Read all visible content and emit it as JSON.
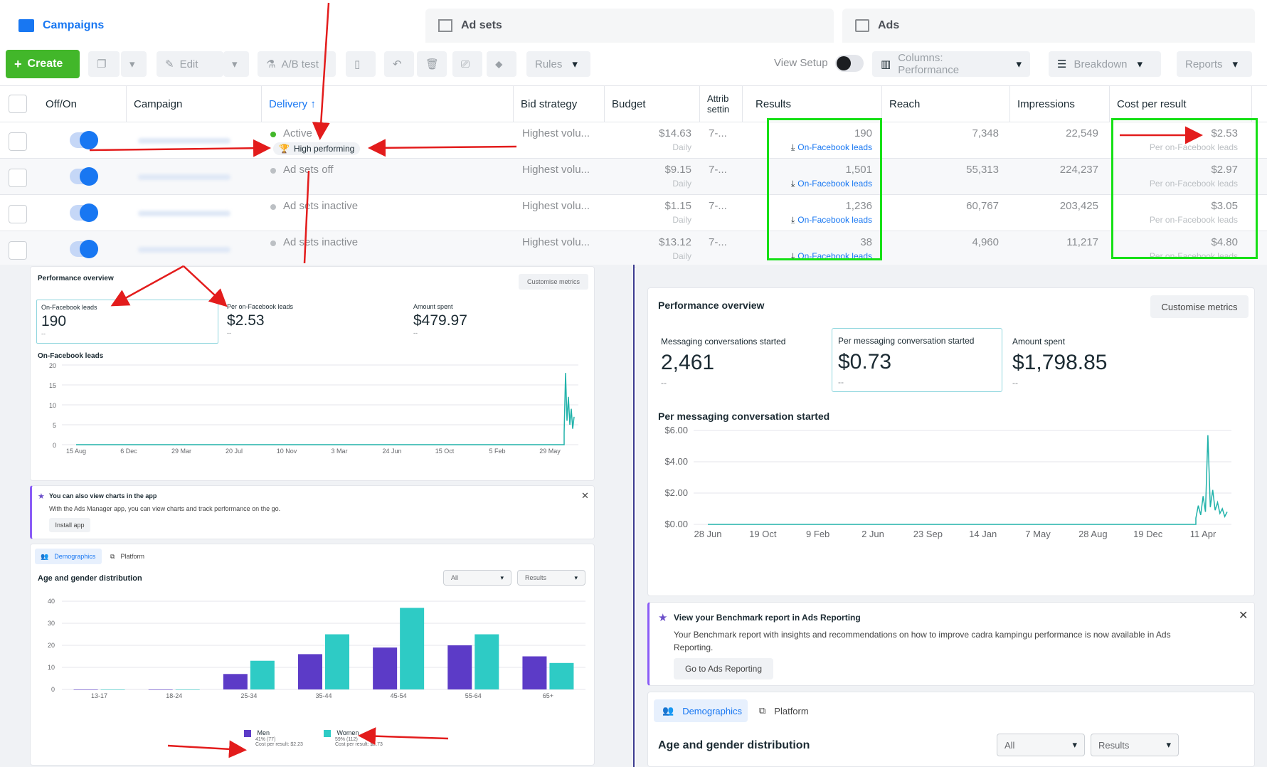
{
  "tabs": [
    {
      "label": "Campaigns",
      "icon": "folder-icon",
      "active": true
    },
    {
      "label": "Ad sets",
      "icon": "grid-icon"
    },
    {
      "label": "Ads",
      "icon": "ad-icon"
    }
  ],
  "toolbar": {
    "create": "Create",
    "edit": "Edit",
    "ab_test": "A/B test",
    "rules": "Rules",
    "view_setup": "View Setup",
    "columns": "Columns: Performance",
    "breakdown": "Breakdown",
    "reports": "Reports"
  },
  "table": {
    "headers": [
      "Off/On",
      "Campaign",
      "Delivery ↑",
      "Bid strategy",
      "Budget",
      "Attrib settin",
      "Results",
      "Reach",
      "Impressions",
      "Cost per result"
    ],
    "rows": [
      {
        "delivery": "Active",
        "delivery_sub": "High performing",
        "bid": "Highest volu...",
        "budget": "$14.63",
        "budget_sub": "Daily",
        "attrib": "7-...",
        "results": "190",
        "results_sub": "On-Facebook leads",
        "reach": "7,348",
        "impressions": "22,549",
        "cpr": "$2.53",
        "cpr_sub": "Per on-Facebook leads"
      },
      {
        "delivery": "Ad sets off",
        "bid": "Highest volu...",
        "budget": "$9.15",
        "budget_sub": "Daily",
        "attrib": "7-...",
        "results": "1,501",
        "results_sub": "On-Facebook leads",
        "reach": "55,313",
        "impressions": "224,237",
        "cpr": "$2.97",
        "cpr_sub": "Per on-Facebook leads"
      },
      {
        "delivery": "Ad sets inactive",
        "bid": "Highest volu...",
        "budget": "$1.15",
        "budget_sub": "Daily",
        "attrib": "7-...",
        "results": "1,236",
        "results_sub": "On-Facebook leads",
        "reach": "60,767",
        "impressions": "203,425",
        "cpr": "$3.05",
        "cpr_sub": "Per on-Facebook leads"
      },
      {
        "delivery": "Ad sets inactive",
        "bid": "Highest volu...",
        "budget": "$13.12",
        "budget_sub": "Daily",
        "attrib": "7-...",
        "results": "38",
        "results_sub": "On-Facebook leads",
        "reach": "4,960",
        "impressions": "11,217",
        "cpr": "$4.80",
        "cpr_sub": "Per on-Facebook leads"
      }
    ]
  },
  "left_panel": {
    "title": "Performance overview",
    "customise": "Customise metrics",
    "metrics": [
      {
        "label": "On-Facebook leads",
        "value": "190",
        "delta": "--"
      },
      {
        "label": "Per on-Facebook leads",
        "value": "$2.53",
        "delta": "--"
      },
      {
        "label": "Amount spent",
        "value": "$479.97",
        "delta": "--"
      }
    ],
    "chart_title": "On-Facebook leads",
    "banner_title": "You can also view charts in the app",
    "banner_text": "With the Ads Manager app, you can view charts and track performance on the go.",
    "banner_button": "Install app",
    "tab_demographics": "Demographics",
    "tab_platform": "Platform",
    "age_title": "Age and gender distribution",
    "filter_all": "All",
    "filter_results": "Results",
    "legend_men": "Men",
    "legend_men_sub1": "41% (77)",
    "legend_men_sub2": "Cost per result: $2.23",
    "legend_women": "Women",
    "legend_women_sub1": "59% (112)",
    "legend_women_sub2": "Cost per result: $2.73"
  },
  "right_panel": {
    "title": "Performance overview",
    "customise": "Customise metrics",
    "metrics": [
      {
        "label": "Messaging conversations started",
        "value": "2,461",
        "delta": "--"
      },
      {
        "label": "Per messaging conversation started",
        "value": "$0.73",
        "delta": "--"
      },
      {
        "label": "Amount spent",
        "value": "$1,798.85",
        "delta": "--"
      }
    ],
    "chart_title": "Per messaging conversation started",
    "banner_title": "View your Benchmark report in Ads Reporting",
    "banner_text": "Your Benchmark report with insights and recommendations on how to improve cadra kampingu performance is now available in Ads Reporting.",
    "banner_button": "Go to Ads Reporting",
    "tab_demographics": "Demographics",
    "tab_platform": "Platform",
    "age_title": "Age and gender distribution",
    "filter_all": "All",
    "filter_results": "Results"
  },
  "chart_data": [
    {
      "type": "line",
      "title": "On-Facebook leads",
      "x_ticks": [
        "15 Aug",
        "6 Dec",
        "29 Mar",
        "20 Jul",
        "10 Nov",
        "3 Mar",
        "24 Jun",
        "15 Oct",
        "5 Feb",
        "29 May"
      ],
      "y_ticks": [
        "0",
        "5",
        "10",
        "15",
        "20"
      ],
      "ylim": [
        0,
        20
      ],
      "series": [
        {
          "values": [
            0,
            0,
            0,
            0,
            0,
            0,
            0,
            0,
            0,
            0,
            0,
            3,
            18,
            6,
            12,
            5,
            9,
            4,
            7
          ]
        }
      ],
      "color": "#20b2aa"
    },
    {
      "type": "bar",
      "title": "Age and gender distribution",
      "categories": [
        "13-17",
        "18-24",
        "25-34",
        "35-44",
        "45-54",
        "55-64",
        "65+"
      ],
      "y_ticks": [
        "0",
        "10",
        "20",
        "30",
        "40"
      ],
      "ylim": [
        0,
        40
      ],
      "series": [
        {
          "name": "Men",
          "color": "#5c3bc7",
          "values": [
            0,
            0,
            7,
            16,
            19,
            20,
            15
          ]
        },
        {
          "name": "Women",
          "color": "#2ecbc5",
          "values": [
            0,
            0,
            13,
            25,
            37,
            25,
            12
          ]
        }
      ]
    },
    {
      "type": "line",
      "title": "Per messaging conversation started",
      "x_ticks": [
        "28 Jun",
        "19 Oct",
        "9 Feb",
        "2 Jun",
        "23 Sep",
        "14 Jan",
        "7 May",
        "28 Aug",
        "19 Dec",
        "11 Apr"
      ],
      "y_ticks": [
        "$0.00",
        "$2.00",
        "$4.00",
        "$6.00"
      ],
      "ylim": [
        0,
        6
      ],
      "series": [
        {
          "values": [
            0,
            0,
            0,
            0,
            0,
            0,
            0,
            0,
            0,
            0,
            0,
            0.4,
            1.2,
            0.6,
            1.8,
            0.8,
            5.7,
            1.1,
            2.2,
            0.9,
            1.4,
            0.7,
            1.0,
            0.5,
            0.8
          ]
        }
      ],
      "color": "#20b2aa"
    }
  ],
  "colors": {
    "accent": "#1877f2",
    "create": "#42b72a",
    "highlight": "#16e016",
    "annotation": "#e31c1c",
    "teal": "#2ecbc5",
    "purple": "#5c3bc7"
  }
}
